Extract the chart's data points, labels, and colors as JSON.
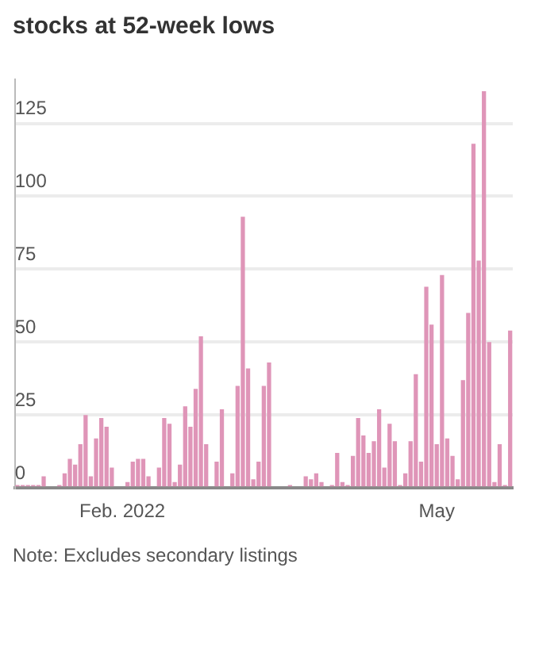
{
  "chart_data": {
    "type": "bar",
    "title": "stocks at 52-week lows",
    "categories": [
      null,
      null,
      null,
      null,
      null,
      null,
      null,
      null,
      null,
      null,
      null,
      null,
      null,
      null,
      null,
      null,
      null,
      null,
      null,
      null,
      "Feb. 2022",
      null,
      null,
      null,
      null,
      null,
      null,
      null,
      null,
      null,
      null,
      null,
      null,
      null,
      null,
      null,
      null,
      null,
      null,
      null,
      null,
      null,
      null,
      null,
      null,
      null,
      null,
      null,
      null,
      null,
      null,
      null,
      null,
      null,
      null,
      null,
      null,
      null,
      null,
      null,
      null,
      null,
      null,
      null,
      null,
      null,
      null,
      null,
      null,
      null,
      null,
      null,
      null,
      null,
      null,
      null,
      null,
      null,
      null,
      null,
      "May",
      null,
      null,
      null,
      null,
      null,
      null,
      null,
      null,
      null,
      null,
      null,
      null,
      null,
      null
    ],
    "values": [
      1,
      1,
      1,
      1,
      1,
      4,
      0,
      0,
      1,
      5,
      10,
      8,
      15,
      25,
      4,
      17,
      24,
      21,
      7,
      0,
      0,
      2,
      9,
      10,
      10,
      4,
      0,
      7,
      24,
      22,
      2,
      8,
      28,
      21,
      34,
      52,
      15,
      0,
      9,
      27,
      0,
      5,
      35,
      93,
      41,
      3,
      9,
      35,
      43,
      0,
      0,
      0,
      1,
      0,
      0,
      4,
      3,
      5,
      2,
      0,
      1,
      12,
      2,
      1,
      11,
      24,
      18,
      12,
      16,
      27,
      7,
      22,
      16,
      1,
      5,
      16,
      39,
      9,
      69,
      56,
      15,
      73,
      17,
      11,
      3,
      37,
      60,
      118,
      78,
      136,
      50,
      2,
      15,
      1,
      54
    ],
    "color": "#df95b8",
    "ylim": [
      0,
      140
    ],
    "yticks": [
      0,
      25,
      50,
      75,
      100,
      125
    ],
    "grid": "y",
    "annotations": [
      "Note: Excludes secondary listings"
    ]
  }
}
